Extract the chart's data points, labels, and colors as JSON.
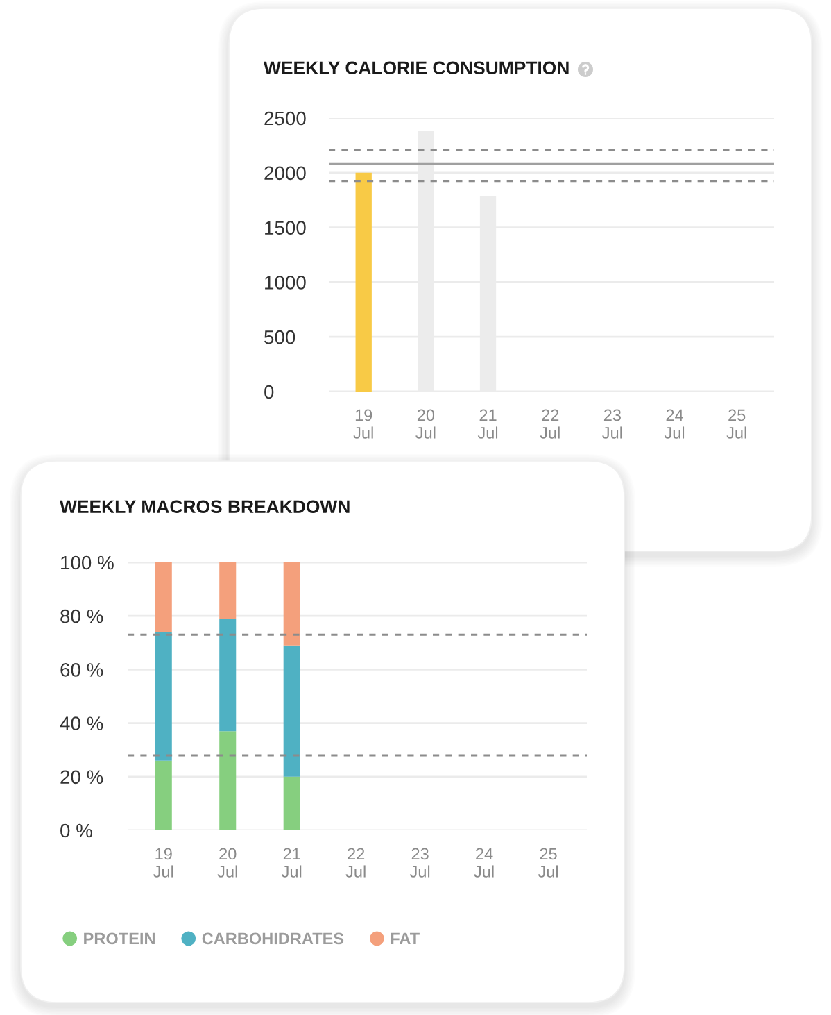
{
  "chart_data": [
    {
      "type": "bar",
      "title": "WEEKLY CALORIE CONSUMPTION",
      "categories": [
        "19\nJul",
        "20\nJul",
        "21\nJul",
        "22\nJul",
        "23\nJul",
        "24\nJul",
        "25\nJul"
      ],
      "values": [
        2000,
        2380,
        1790,
        null,
        null,
        null,
        null
      ],
      "colors": [
        "#f8ca46",
        "#ececec",
        "#ececec",
        null,
        null,
        null,
        null
      ],
      "ylim": [
        0,
        2500
      ],
      "yticks": [
        0,
        500,
        1000,
        1500,
        2000,
        2500
      ],
      "grid": "y",
      "ref_lines": [
        {
          "axis": "y",
          "value": 2210,
          "color": "#8c8c8c",
          "line_style": "dashed"
        },
        {
          "axis": "y",
          "value": 2080,
          "color": "#a0a0a0",
          "line_style": "solid"
        },
        {
          "axis": "y",
          "value": 1925,
          "color": "#8c8c8c",
          "line_style": "dashed"
        }
      ]
    },
    {
      "type": "bar",
      "title": "WEEKLY MACROS BREAKDOWN",
      "categories": [
        "19\nJul",
        "20\nJul",
        "21\nJul",
        "22\nJul",
        "23\nJul",
        "24\nJul",
        "25\nJul"
      ],
      "stacked": true,
      "series": [
        {
          "name": "PROTEIN",
          "color": "#86cf7f",
          "values": [
            26,
            37,
            20,
            null,
            null,
            null,
            null
          ]
        },
        {
          "name": "CARBOHIDRATES",
          "color": "#4fb1c3",
          "values": [
            48,
            42,
            49,
            null,
            null,
            null,
            null
          ]
        },
        {
          "name": "FAT",
          "color": "#f4a07c",
          "values": [
            26,
            21,
            31,
            null,
            null,
            null,
            null
          ]
        }
      ],
      "ylim": [
        0,
        100
      ],
      "yticks": [
        {
          "value": 0,
          "label": "0 %"
        },
        {
          "value": 20,
          "label": "20 %"
        },
        {
          "value": 40,
          "label": "40 %"
        },
        {
          "value": 60,
          "label": "60 %"
        },
        {
          "value": 80,
          "label": "80 %"
        },
        {
          "value": 100,
          "label": "100 %"
        }
      ],
      "grid": "y",
      "legend": "bottom",
      "ref_lines": [
        {
          "axis": "y",
          "value": 73,
          "color": "#8c8c8c",
          "line_style": "dashed"
        },
        {
          "axis": "y",
          "value": 28,
          "color": "#8c8c8c",
          "line_style": "dashed"
        }
      ]
    }
  ]
}
